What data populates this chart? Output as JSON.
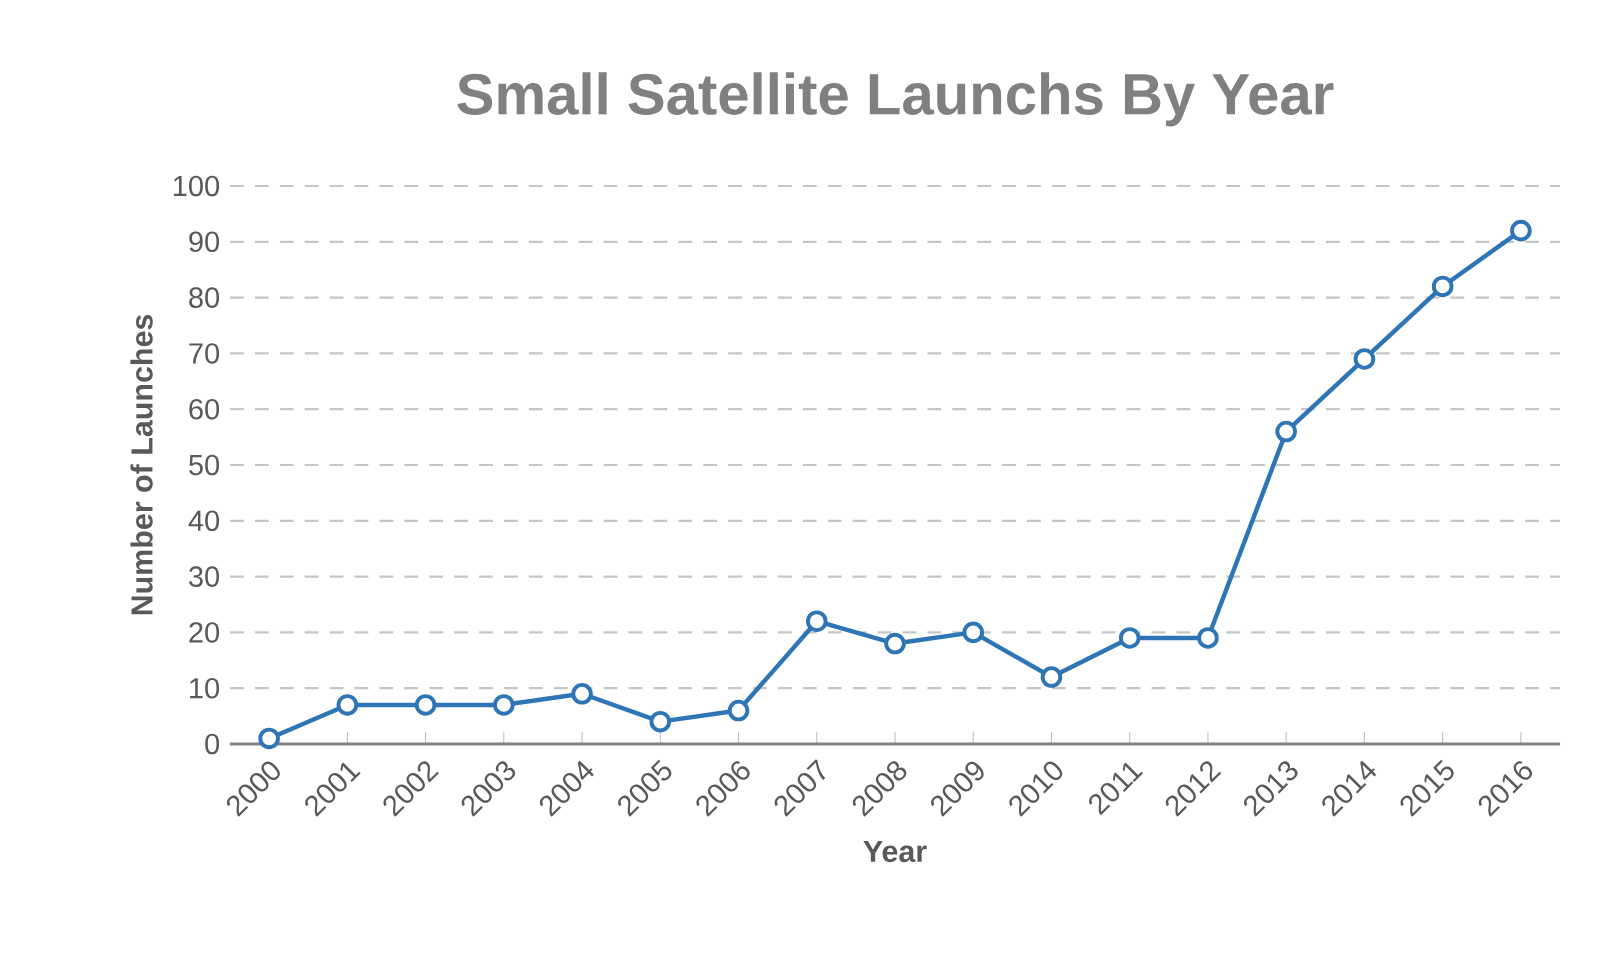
{
  "chart_data": {
    "type": "line",
    "title": "Small Satellite Launchs By Year",
    "xlabel": "Year",
    "ylabel": "Number of Launches",
    "categories": [
      "2000",
      "2001",
      "2002",
      "2003",
      "2004",
      "2005",
      "2006",
      "2007",
      "2008",
      "2009",
      "2010",
      "2011",
      "2012",
      "2013",
      "2014",
      "2015",
      "2016"
    ],
    "series": [
      {
        "color": "#2e75b6",
        "values": [
          1,
          7,
          7,
          7,
          9,
          4,
          6,
          22,
          18,
          20,
          12,
          19,
          19,
          56,
          69,
          82,
          92
        ]
      }
    ],
    "ylim": [
      0,
      100
    ],
    "yticks": [
      0,
      10,
      20,
      30,
      40,
      50,
      60,
      70,
      80,
      90,
      100
    ],
    "grid": "y",
    "marker": "circle",
    "line_style": "solid"
  }
}
